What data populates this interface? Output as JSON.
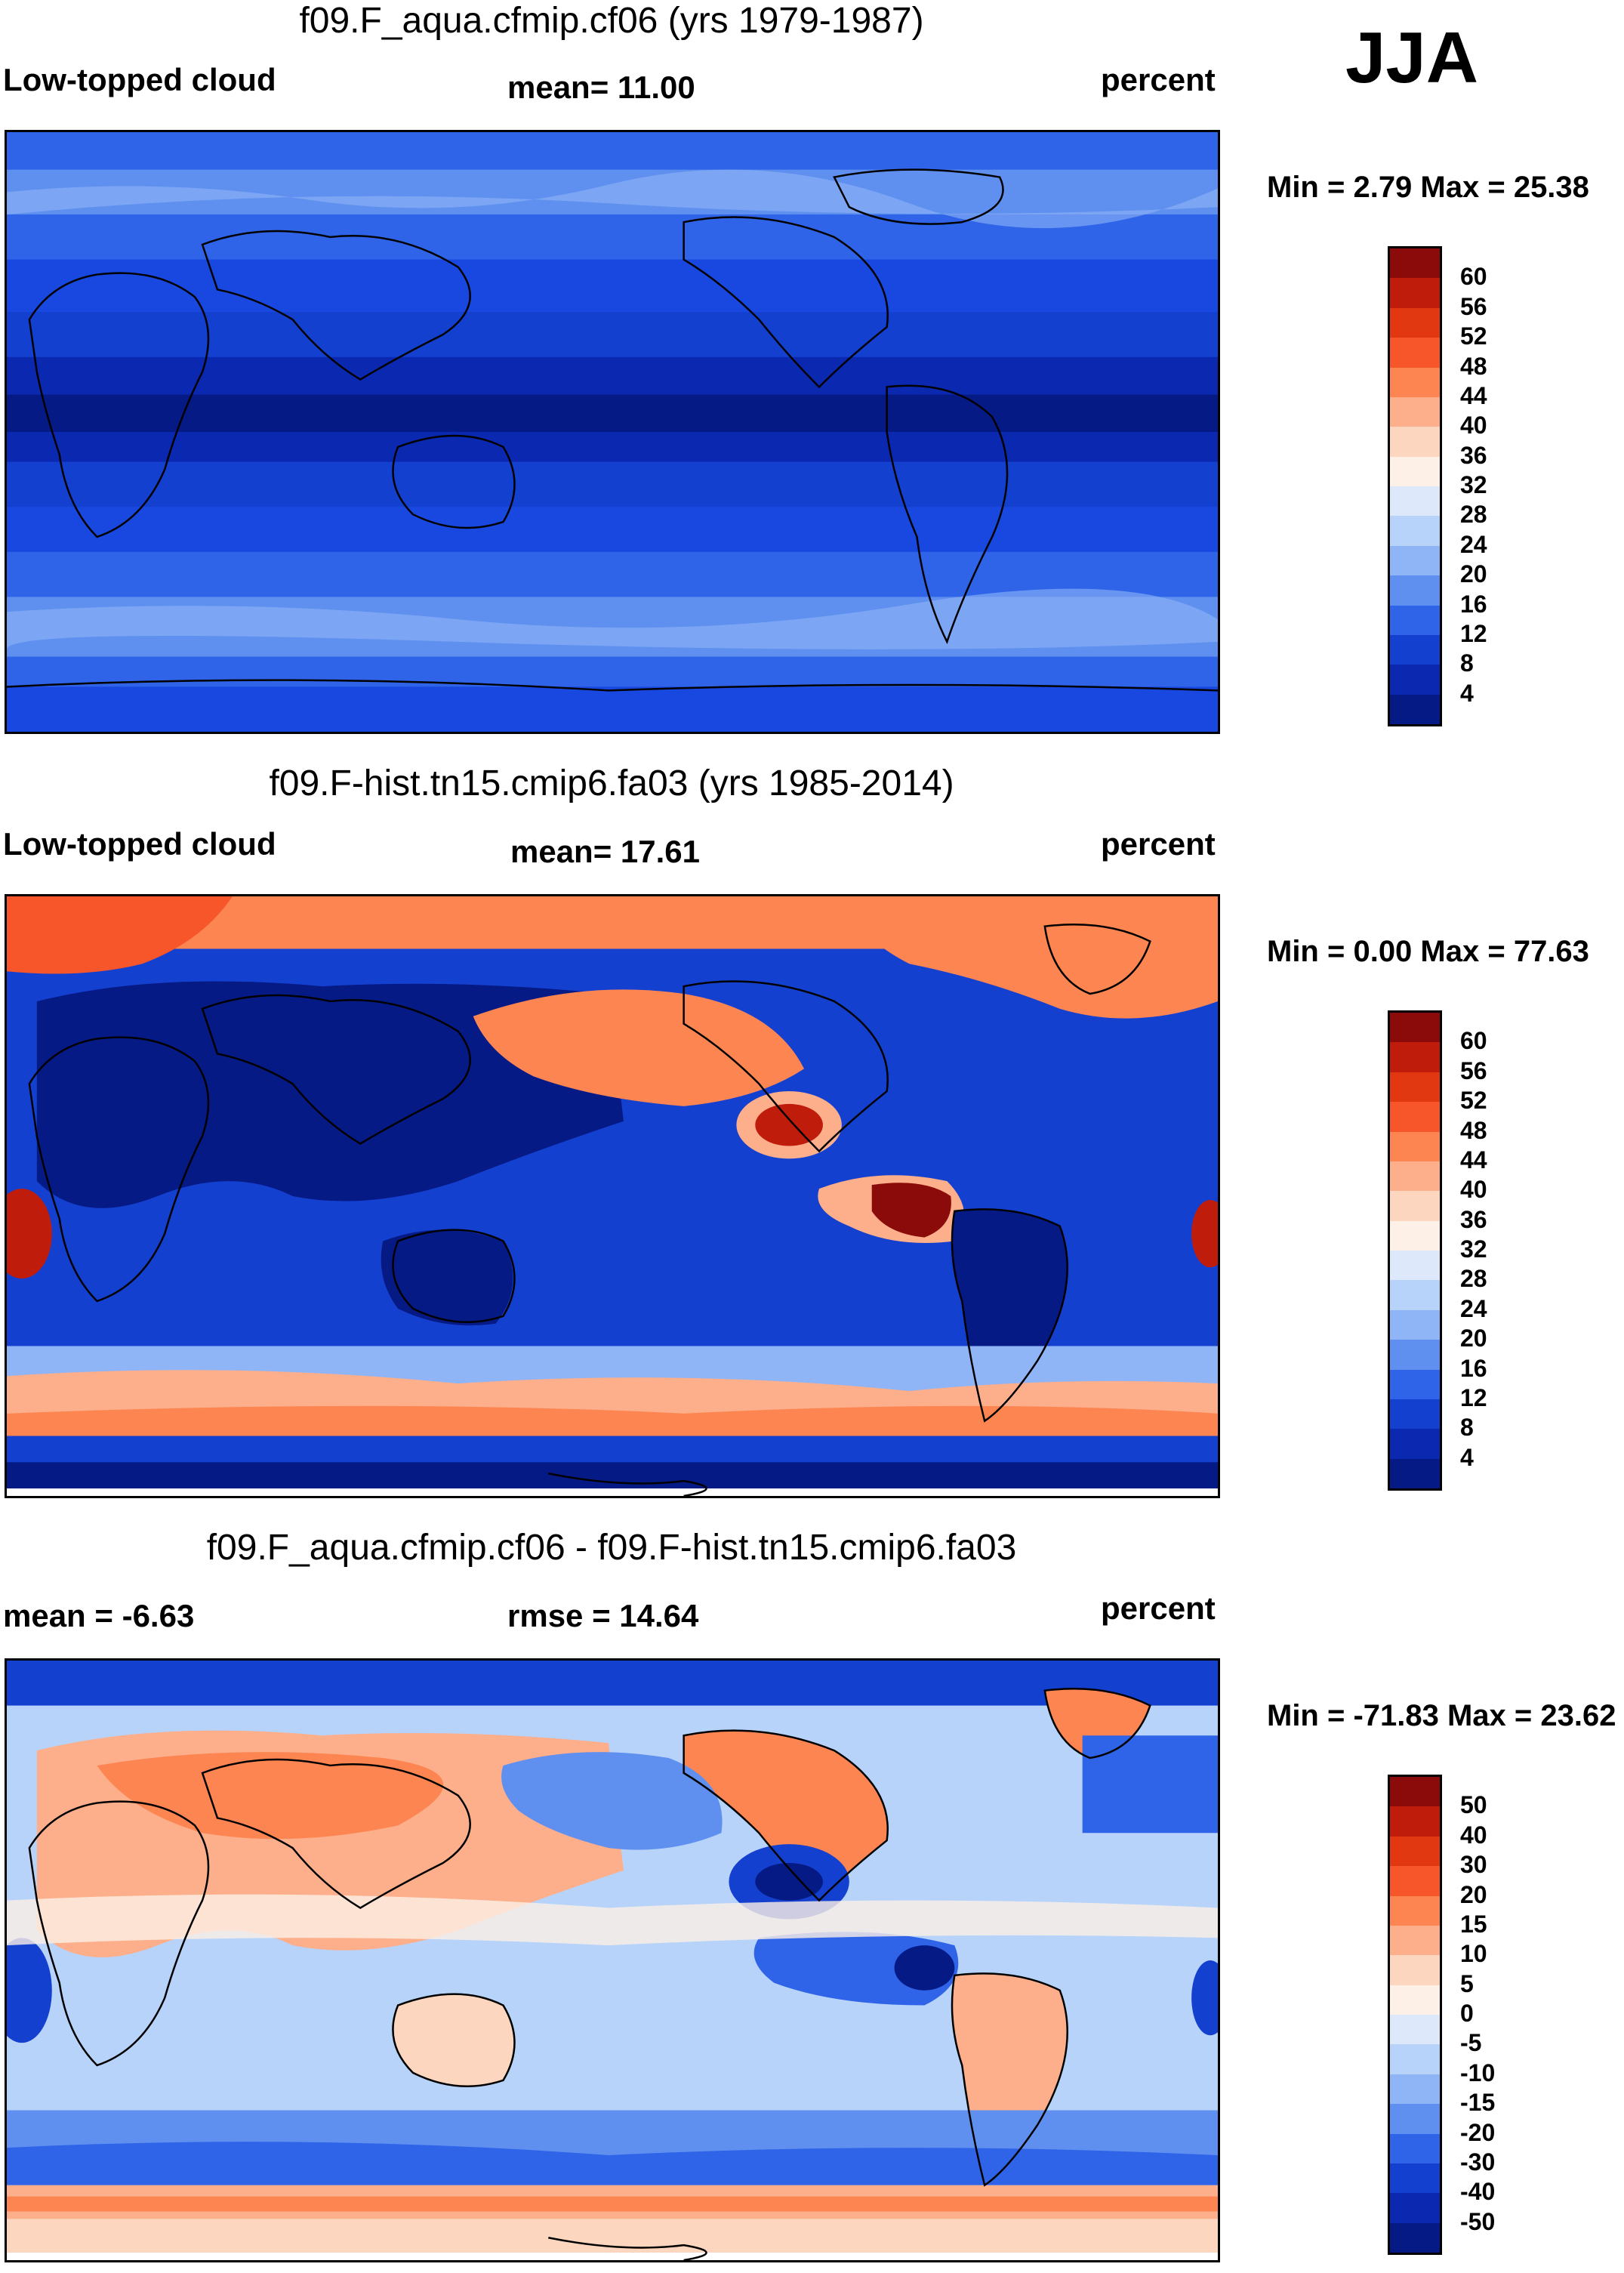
{
  "season": "JJA",
  "panels": [
    {
      "title": "f09.F_aqua.cfmip.cf06 (yrs 1979-1987)",
      "left_label": "Low-topped cloud",
      "center_label": "mean=  11.00",
      "right_label": "percent",
      "minmax": "Min =    2.79 Max =  25.38",
      "colorbar": {
        "labels": [
          "60",
          "56",
          "52",
          "48",
          "44",
          "40",
          "36",
          "32",
          "28",
          "24",
          "20",
          "16",
          "12",
          "8",
          "4"
        ],
        "colors": [
          "#8b0a0a",
          "#c01c0c",
          "#e23812",
          "#f7552a",
          "#fc8552",
          "#fdae8a",
          "#fdd6bf",
          "#fdf0e6",
          "#dde9fb",
          "#b7d3fa",
          "#8fb5f6",
          "#5f90f0",
          "#2f64e8",
          "#1440d0",
          "#0a28b0",
          "#061a86"
        ]
      },
      "map_style": "aqua"
    },
    {
      "title": "f09.F-hist.tn15.cmip6.fa03 (yrs 1985-2014)",
      "left_label": "Low-topped cloud",
      "center_label": "mean=  17.61",
      "right_label": "percent",
      "minmax": "Min =    0.00 Max =  77.63",
      "colorbar": {
        "labels": [
          "60",
          "56",
          "52",
          "48",
          "44",
          "40",
          "36",
          "32",
          "28",
          "24",
          "20",
          "16",
          "12",
          "8",
          "4"
        ],
        "colors": [
          "#8b0a0a",
          "#c01c0c",
          "#e23812",
          "#f7552a",
          "#fc8552",
          "#fdae8a",
          "#fdd6bf",
          "#fdf0e6",
          "#dde9fb",
          "#b7d3fa",
          "#8fb5f6",
          "#5f90f0",
          "#2f64e8",
          "#1440d0",
          "#0a28b0",
          "#061a86"
        ]
      },
      "map_style": "hist"
    },
    {
      "title": "f09.F_aqua.cfmip.cf06 - f09.F-hist.tn15.cmip6.fa03",
      "left_label": "mean =  -6.63",
      "center_label": "rmse =  14.64",
      "right_label": "percent",
      "minmax": "Min = -71.83 Max =  23.62",
      "colorbar": {
        "labels": [
          "50",
          "40",
          "30",
          "20",
          "15",
          "10",
          "5",
          "0",
          "-5",
          "-10",
          "-15",
          "-20",
          "-30",
          "-40",
          "-50"
        ],
        "colors": [
          "#8b0a0a",
          "#c01c0c",
          "#e23812",
          "#f7552a",
          "#fc8552",
          "#fdae8a",
          "#fdd6bf",
          "#fdf0e6",
          "#dde9fb",
          "#b7d3fa",
          "#8fb5f6",
          "#5f90f0",
          "#2f64e8",
          "#1440d0",
          "#0a28b0",
          "#061a86"
        ]
      },
      "map_style": "diff"
    }
  ]
}
